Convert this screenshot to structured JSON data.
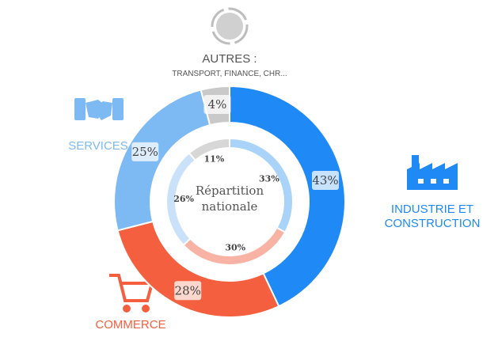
{
  "chart_data": [
    {
      "type": "donut",
      "categories": [
        "INDUSTRIE ET CONSTRUCTION",
        "COMMERCE",
        "SERVICES",
        "AUTRES :"
      ],
      "annotations": [
        "TRANSPORT, FINANCE, CHR..."
      ],
      "values": [
        43,
        28,
        25,
        4
      ],
      "value_labels": [
        "43%",
        "28%",
        "25%",
        "4%"
      ],
      "colors": [
        "#1f8af5",
        "#f4603f",
        "#7db9f3",
        "#c9c9c9"
      ]
    },
    {
      "type": "donut",
      "title": "Répartition nationale",
      "values": [
        33,
        30,
        26,
        11
      ],
      "value_labels": [
        "33%",
        "30%",
        "26%",
        "11%"
      ],
      "colors": [
        "#a9d3f8",
        "#f8b3a4",
        "#c9e2fa",
        "#d7d7d7"
      ]
    }
  ]
}
